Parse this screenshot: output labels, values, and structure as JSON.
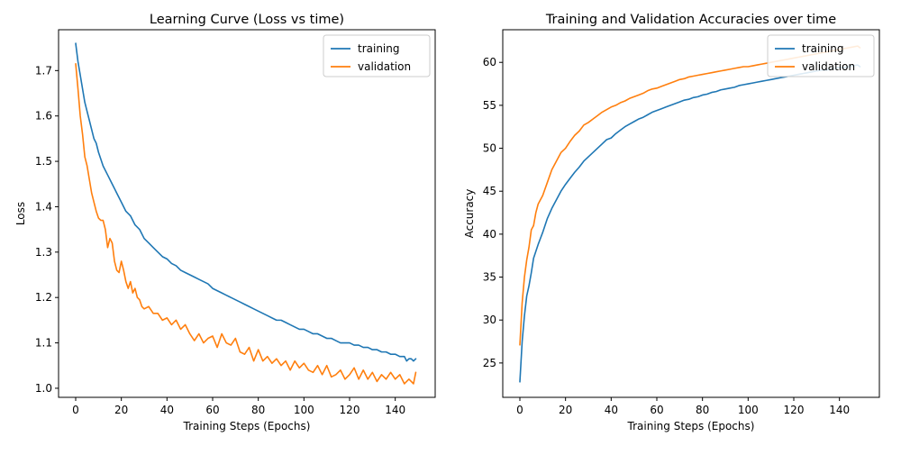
{
  "colors": {
    "training": "#1f77b4",
    "validation": "#ff7f0e"
  },
  "chart_data": [
    {
      "type": "line",
      "title": "Learning Curve (Loss vs time)",
      "xlabel": "Training Steps (Epochs)",
      "ylabel": "Loss",
      "xlim": [
        -7.5,
        157.5
      ],
      "ylim": [
        0.98,
        1.79
      ],
      "xticks": [
        0,
        20,
        40,
        60,
        80,
        100,
        120,
        140
      ],
      "yticks": [
        1.0,
        1.1,
        1.2,
        1.3,
        1.4,
        1.5,
        1.6,
        1.7
      ],
      "ytick_labels": [
        "1.0",
        "1.1",
        "1.2",
        "1.3",
        "1.4",
        "1.5",
        "1.6",
        "1.7"
      ],
      "legend": "top-right",
      "grid": false,
      "series": [
        {
          "name": "training",
          "color": "#1f77b4",
          "x": [
            0,
            1,
            2,
            3,
            4,
            5,
            6,
            7,
            8,
            9,
            10,
            12,
            14,
            16,
            18,
            20,
            22,
            24,
            26,
            28,
            30,
            32,
            34,
            36,
            38,
            40,
            42,
            44,
            46,
            48,
            50,
            52,
            54,
            56,
            58,
            60,
            62,
            64,
            66,
            68,
            70,
            72,
            74,
            76,
            78,
            80,
            82,
            84,
            86,
            88,
            90,
            92,
            94,
            96,
            98,
            100,
            102,
            104,
            106,
            108,
            110,
            112,
            114,
            116,
            118,
            120,
            122,
            124,
            126,
            128,
            130,
            132,
            134,
            136,
            138,
            140,
            142,
            144,
            145,
            146,
            147,
            148,
            149
          ],
          "values": [
            1.76,
            1.72,
            1.69,
            1.66,
            1.63,
            1.61,
            1.59,
            1.57,
            1.55,
            1.54,
            1.52,
            1.49,
            1.47,
            1.45,
            1.43,
            1.41,
            1.39,
            1.38,
            1.36,
            1.35,
            1.33,
            1.32,
            1.31,
            1.3,
            1.29,
            1.285,
            1.275,
            1.27,
            1.26,
            1.255,
            1.25,
            1.245,
            1.24,
            1.235,
            1.23,
            1.22,
            1.215,
            1.21,
            1.205,
            1.2,
            1.195,
            1.19,
            1.185,
            1.18,
            1.175,
            1.17,
            1.165,
            1.16,
            1.155,
            1.15,
            1.15,
            1.145,
            1.14,
            1.135,
            1.13,
            1.13,
            1.125,
            1.12,
            1.12,
            1.115,
            1.11,
            1.11,
            1.105,
            1.1,
            1.1,
            1.1,
            1.095,
            1.095,
            1.09,
            1.09,
            1.085,
            1.085,
            1.08,
            1.08,
            1.075,
            1.075,
            1.07,
            1.07,
            1.06,
            1.065,
            1.065,
            1.06,
            1.065
          ]
        },
        {
          "name": "validation",
          "color": "#ff7f0e",
          "x": [
            0,
            1,
            2,
            3,
            4,
            5,
            6,
            7,
            8,
            9,
            10,
            11,
            12,
            13,
            14,
            15,
            16,
            17,
            18,
            19,
            20,
            21,
            22,
            23,
            24,
            25,
            26,
            27,
            28,
            29,
            30,
            32,
            34,
            36,
            38,
            40,
            42,
            44,
            46,
            48,
            50,
            52,
            54,
            56,
            58,
            60,
            62,
            64,
            66,
            68,
            70,
            72,
            74,
            76,
            78,
            80,
            82,
            84,
            86,
            88,
            90,
            92,
            94,
            96,
            98,
            100,
            102,
            104,
            106,
            108,
            110,
            112,
            114,
            116,
            118,
            120,
            122,
            124,
            126,
            128,
            130,
            132,
            134,
            136,
            138,
            140,
            142,
            144,
            146,
            148,
            149
          ],
          "values": [
            1.715,
            1.66,
            1.6,
            1.56,
            1.51,
            1.49,
            1.46,
            1.43,
            1.41,
            1.39,
            1.375,
            1.37,
            1.37,
            1.35,
            1.31,
            1.33,
            1.32,
            1.28,
            1.26,
            1.255,
            1.28,
            1.26,
            1.235,
            1.22,
            1.235,
            1.21,
            1.22,
            1.2,
            1.195,
            1.18,
            1.175,
            1.18,
            1.165,
            1.165,
            1.15,
            1.155,
            1.14,
            1.15,
            1.13,
            1.14,
            1.12,
            1.105,
            1.12,
            1.1,
            1.11,
            1.115,
            1.09,
            1.12,
            1.1,
            1.095,
            1.11,
            1.08,
            1.075,
            1.09,
            1.06,
            1.085,
            1.06,
            1.07,
            1.055,
            1.065,
            1.05,
            1.06,
            1.04,
            1.06,
            1.045,
            1.055,
            1.04,
            1.035,
            1.05,
            1.03,
            1.05,
            1.025,
            1.03,
            1.04,
            1.02,
            1.03,
            1.045,
            1.02,
            1.04,
            1.02,
            1.035,
            1.015,
            1.03,
            1.02,
            1.035,
            1.02,
            1.03,
            1.01,
            1.02,
            1.01,
            1.035
          ]
        }
      ]
    },
    {
      "type": "line",
      "title": "Training and Validation Accuracies over time",
      "xlabel": "Training Steps (Epochs)",
      "ylabel": "Accuracy",
      "xlim": [
        -7.5,
        157.5
      ],
      "ylim": [
        21.0,
        63.8
      ],
      "xticks": [
        0,
        20,
        40,
        60,
        80,
        100,
        120,
        140
      ],
      "yticks": [
        25,
        30,
        35,
        40,
        45,
        50,
        55,
        60
      ],
      "ytick_labels": [
        "25",
        "30",
        "35",
        "40",
        "45",
        "50",
        "55",
        "60"
      ],
      "legend": "top-right",
      "grid": false,
      "series": [
        {
          "name": "training",
          "color": "#1f77b4",
          "x": [
            0,
            1,
            2,
            3,
            4,
            5,
            6,
            7,
            8,
            9,
            10,
            12,
            14,
            16,
            18,
            20,
            22,
            24,
            26,
            28,
            30,
            32,
            34,
            36,
            38,
            40,
            42,
            44,
            46,
            48,
            50,
            52,
            54,
            56,
            58,
            60,
            62,
            64,
            66,
            68,
            70,
            72,
            74,
            76,
            78,
            80,
            82,
            84,
            86,
            88,
            90,
            92,
            94,
            96,
            98,
            100,
            102,
            104,
            106,
            108,
            110,
            112,
            114,
            116,
            118,
            120,
            122,
            124,
            126,
            128,
            130,
            132,
            134,
            136,
            138,
            140,
            142,
            144,
            146,
            148,
            149
          ],
          "values": [
            22.8,
            27.5,
            30.5,
            32.8,
            34,
            35.5,
            37.2,
            38,
            38.8,
            39.5,
            40.2,
            41.8,
            43,
            44,
            45,
            45.8,
            46.5,
            47.2,
            47.8,
            48.5,
            49,
            49.5,
            50,
            50.5,
            51,
            51.2,
            51.7,
            52.1,
            52.5,
            52.8,
            53.1,
            53.4,
            53.6,
            53.9,
            54.2,
            54.4,
            54.6,
            54.8,
            55,
            55.2,
            55.4,
            55.6,
            55.7,
            55.9,
            56,
            56.2,
            56.3,
            56.5,
            56.6,
            56.8,
            56.9,
            57,
            57.1,
            57.3,
            57.4,
            57.5,
            57.6,
            57.7,
            57.8,
            57.9,
            58,
            58.1,
            58.2,
            58.3,
            58.4,
            58.5,
            58.6,
            58.7,
            58.8,
            58.9,
            59,
            59.1,
            59.1,
            59.2,
            59.3,
            59.4,
            59.4,
            59.5,
            59.6,
            59.7,
            59.5
          ]
        },
        {
          "name": "validation",
          "color": "#ff7f0e",
          "x": [
            0,
            1,
            2,
            3,
            4,
            5,
            6,
            7,
            8,
            10,
            12,
            14,
            16,
            18,
            20,
            22,
            24,
            26,
            28,
            30,
            32,
            34,
            36,
            38,
            40,
            42,
            44,
            46,
            48,
            50,
            52,
            54,
            56,
            58,
            60,
            62,
            64,
            66,
            68,
            70,
            72,
            74,
            76,
            78,
            80,
            82,
            84,
            86,
            88,
            90,
            92,
            94,
            96,
            98,
            100,
            102,
            104,
            106,
            108,
            110,
            112,
            114,
            116,
            118,
            120,
            122,
            124,
            126,
            128,
            130,
            132,
            134,
            136,
            138,
            140,
            142,
            144,
            146,
            148,
            149
          ],
          "values": [
            27.1,
            32,
            35,
            37,
            38.5,
            40.5,
            41,
            42.5,
            43.5,
            44.5,
            46,
            47.5,
            48.5,
            49.5,
            50,
            50.8,
            51.5,
            52,
            52.7,
            53,
            53.4,
            53.8,
            54.2,
            54.5,
            54.8,
            55,
            55.3,
            55.5,
            55.8,
            56,
            56.2,
            56.4,
            56.7,
            56.9,
            57,
            57.2,
            57.4,
            57.6,
            57.8,
            58,
            58.1,
            58.3,
            58.4,
            58.5,
            58.6,
            58.7,
            58.8,
            58.9,
            59,
            59.1,
            59.2,
            59.3,
            59.4,
            59.5,
            59.5,
            59.6,
            59.7,
            59.8,
            59.9,
            60,
            60.1,
            60.2,
            60.3,
            60.4,
            60.5,
            60.6,
            60.7,
            60.8,
            60.9,
            61,
            61.1,
            61.2,
            61.3,
            61.4,
            61.5,
            61.6,
            61.7,
            61.8,
            61.9,
            61.7
          ]
        }
      ]
    }
  ]
}
